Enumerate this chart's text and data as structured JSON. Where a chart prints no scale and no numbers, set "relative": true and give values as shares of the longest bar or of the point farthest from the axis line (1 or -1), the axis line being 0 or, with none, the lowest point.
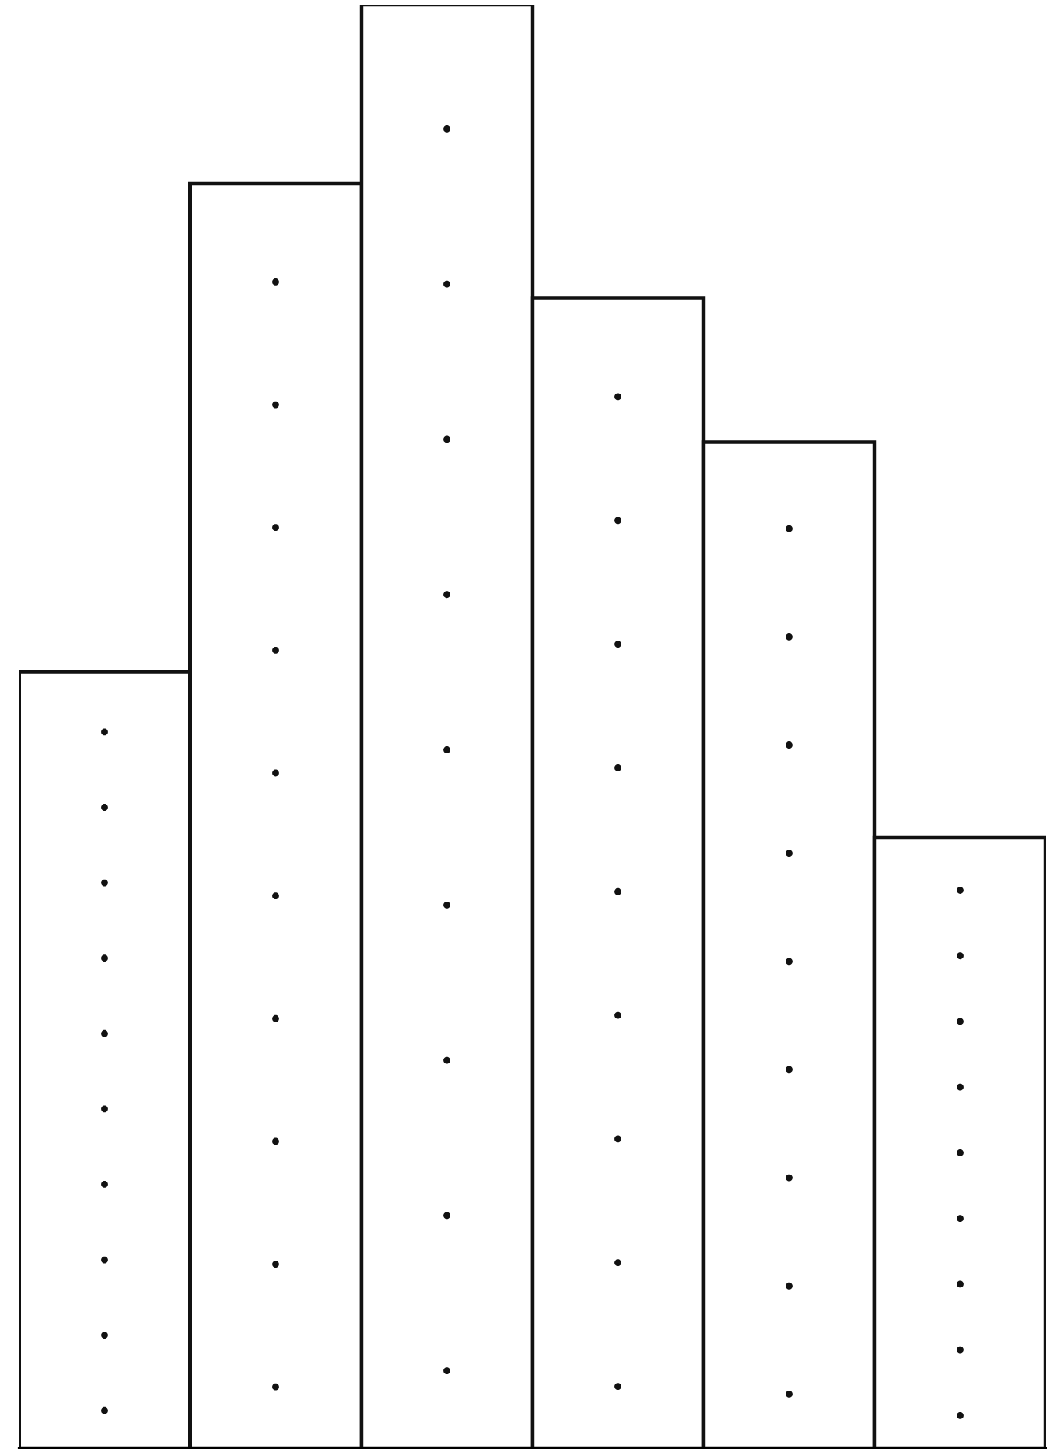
{
  "chart_data": {
    "type": "bar",
    "relative": true,
    "categories": [
      null,
      null,
      null,
      null,
      null,
      null
    ],
    "values": [
      0.538,
      0.876,
      1,
      0.797,
      0.697,
      0.423
    ],
    "color": "#ffffff",
    "grid": false,
    "legend": false
  }
}
